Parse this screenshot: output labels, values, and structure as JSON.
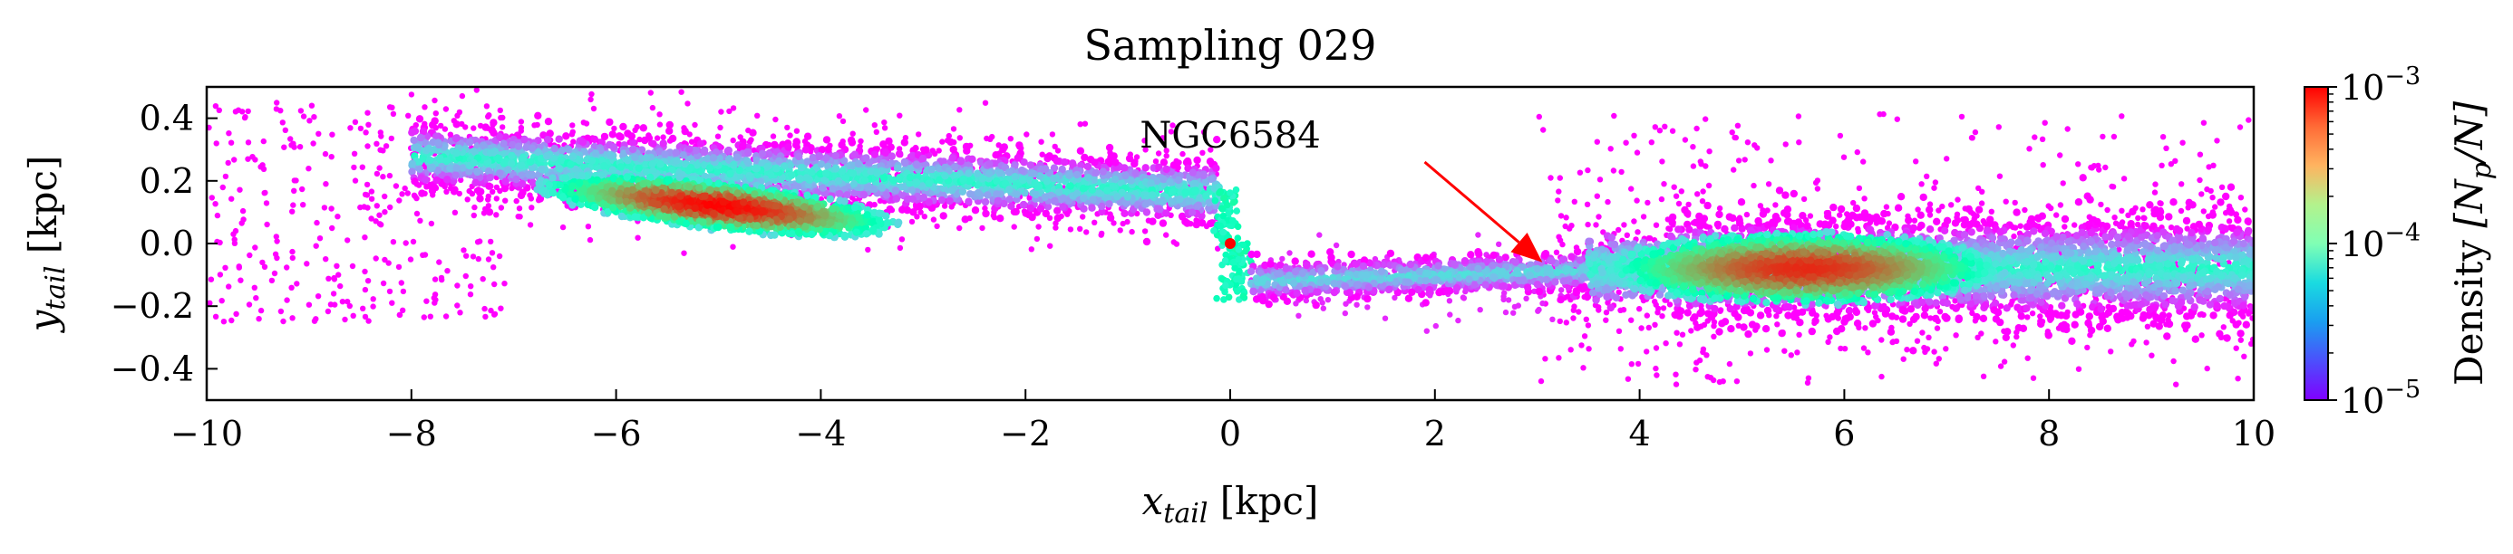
{
  "chart_data": {
    "type": "heatmap",
    "title": "Sampling 029",
    "xlabel": "x_tail [kpc]",
    "xlabel_main": "x",
    "xlabel_sub": "tail",
    "xlabel_unit": " [kpc]",
    "ylabel": "y_tail [kpc]",
    "ylabel_main": "y",
    "ylabel_sub": "tail",
    "ylabel_unit": " [kpc]",
    "xlim": [
      -10,
      10
    ],
    "ylim": [
      -0.5,
      0.5
    ],
    "x_ticks": [
      -10,
      -8,
      -6,
      -4,
      -2,
      0,
      2,
      4,
      6,
      8,
      10
    ],
    "x_tick_labels": [
      "−10",
      "−8",
      "−6",
      "−4",
      "−2",
      "0",
      "2",
      "4",
      "6",
      "8",
      "10"
    ],
    "y_ticks": [
      -0.4,
      -0.2,
      0.0,
      0.2,
      0.4
    ],
    "y_tick_labels": [
      "−0.4",
      "−0.2",
      "0.0",
      "0.2",
      "0.4"
    ],
    "grid": false,
    "colormap": "rainbow",
    "colorbar": {
      "label": "Density [N_p/N]",
      "label_text": "Density ",
      "label_math": "[N",
      "label_sub": "p",
      "label_end": "/N]",
      "scale": "log",
      "range": [
        1e-05,
        0.001
      ],
      "ticks": [
        1e-05,
        0.0001,
        0.001
      ],
      "tick_bases": [
        "10",
        "10",
        "10"
      ],
      "tick_exps": [
        "−5",
        "−4",
        "−3"
      ]
    },
    "annotation": {
      "text": "NGC6584",
      "arrow_from": [
        1.9,
        0.26
      ],
      "arrow_to": [
        3.05,
        -0.06
      ],
      "color": "#ff0000"
    },
    "density_components": [
      {
        "name": "leading-tail-core",
        "x_center": -5.0,
        "y_center": 0.12,
        "x_spread": 0.9,
        "y_spread": 0.04,
        "peak_log_density": -3.0
      },
      {
        "name": "leading-tail-band",
        "x_range": [
          -8.0,
          -0.1
        ],
        "y_at_start": 0.28,
        "y_at_end": 0.16,
        "width": 0.09,
        "peak_log_density": -4.2
      },
      {
        "name": "progenitor",
        "x_center": 0.0,
        "y_center": 0.0,
        "peak_log_density": -3.0
      },
      {
        "name": "trailing-tail-bridge",
        "x_range": [
          0.2,
          4.2
        ],
        "y_center": -0.12,
        "width": 0.06,
        "peak_log_density": -4.3
      },
      {
        "name": "trailing-tail-core",
        "x_center": 5.6,
        "y_center": -0.08,
        "x_spread": 1.0,
        "y_spread": 0.06,
        "peak_log_density": -3.1
      },
      {
        "name": "trailing-tail-band",
        "x_range": [
          3.5,
          10.0
        ],
        "y_center": -0.08,
        "width": 0.16,
        "peak_log_density": -4.2
      },
      {
        "name": "outer-scatter-left",
        "x_range": [
          -10.0,
          -7.0
        ],
        "y_range": [
          -0.25,
          0.45
        ],
        "log_density": -5.0
      },
      {
        "name": "outer-scatter-right",
        "x_range": [
          3.0,
          10.0
        ],
        "y_range": [
          -0.45,
          0.42
        ],
        "log_density": -5.0
      }
    ]
  }
}
